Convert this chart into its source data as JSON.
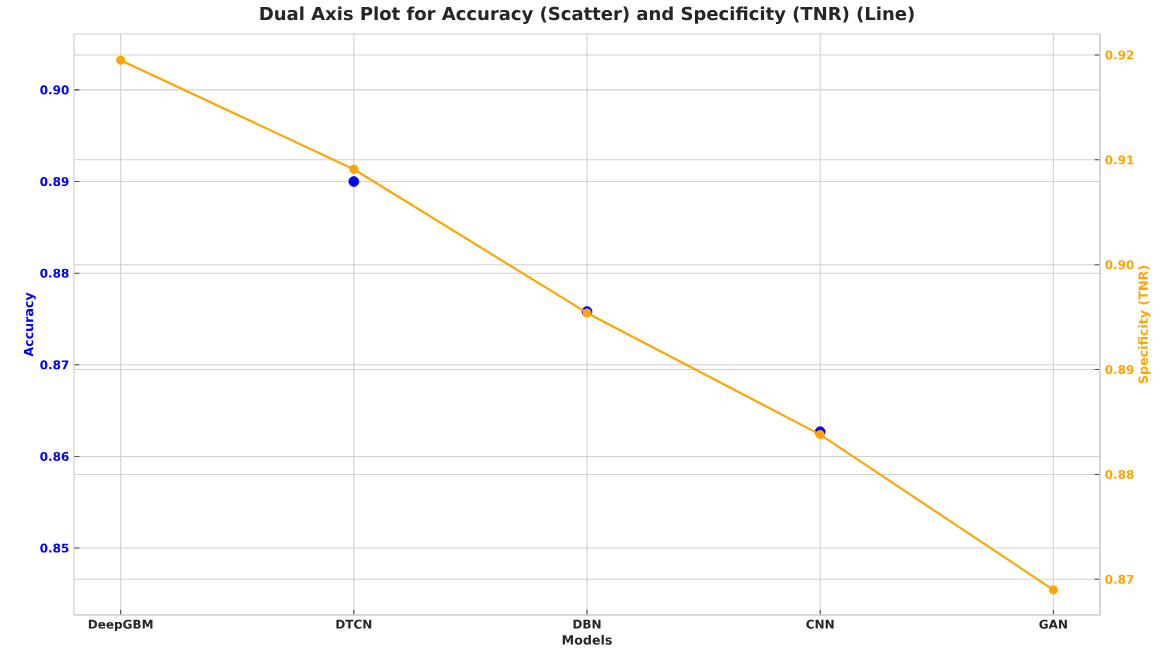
{
  "chart_data": {
    "type": "line",
    "title": "Dual Axis Plot for Accuracy (Scatter) and Specificity (TNR) (Line)",
    "xlabel": "Models",
    "ylabel": "Accuracy",
    "y2label": "Specificity (TNR)",
    "categories": [
      "DeepGBM",
      "DTCN",
      "DBN",
      "CNN",
      "GAN"
    ],
    "series": [
      {
        "type": "scatter",
        "color": "#0000ff",
        "values": [
          null,
          0.89,
          0.8758,
          0.8627,
          null
        ]
      },
      {
        "axis": "y2",
        "color": "#ffa500",
        "values": [
          0.9195,
          0.9091,
          0.8954,
          0.8838,
          0.869
        ]
      }
    ],
    "ylim": [
      0.8427,
      0.9061
    ],
    "yticks": [
      {
        "value": 0.85,
        "label": "0.85"
      },
      {
        "value": 0.86,
        "label": "0.86"
      },
      {
        "value": 0.87,
        "label": "0.87"
      },
      {
        "value": 0.88,
        "label": "0.88"
      },
      {
        "value": 0.89,
        "label": "0.89"
      },
      {
        "value": 0.9,
        "label": "0.90"
      }
    ],
    "y2lim": [
      0.8666,
      0.922
    ],
    "y2ticks": [
      {
        "value": 0.87,
        "label": "0.87"
      },
      {
        "value": 0.88,
        "label": "0.88"
      },
      {
        "value": 0.89,
        "label": "0.89"
      },
      {
        "value": 0.9,
        "label": "0.90"
      },
      {
        "value": 0.91,
        "label": "0.91"
      },
      {
        "value": 0.92,
        "label": "0.92"
      }
    ],
    "grid": true,
    "marker": "circle"
  }
}
